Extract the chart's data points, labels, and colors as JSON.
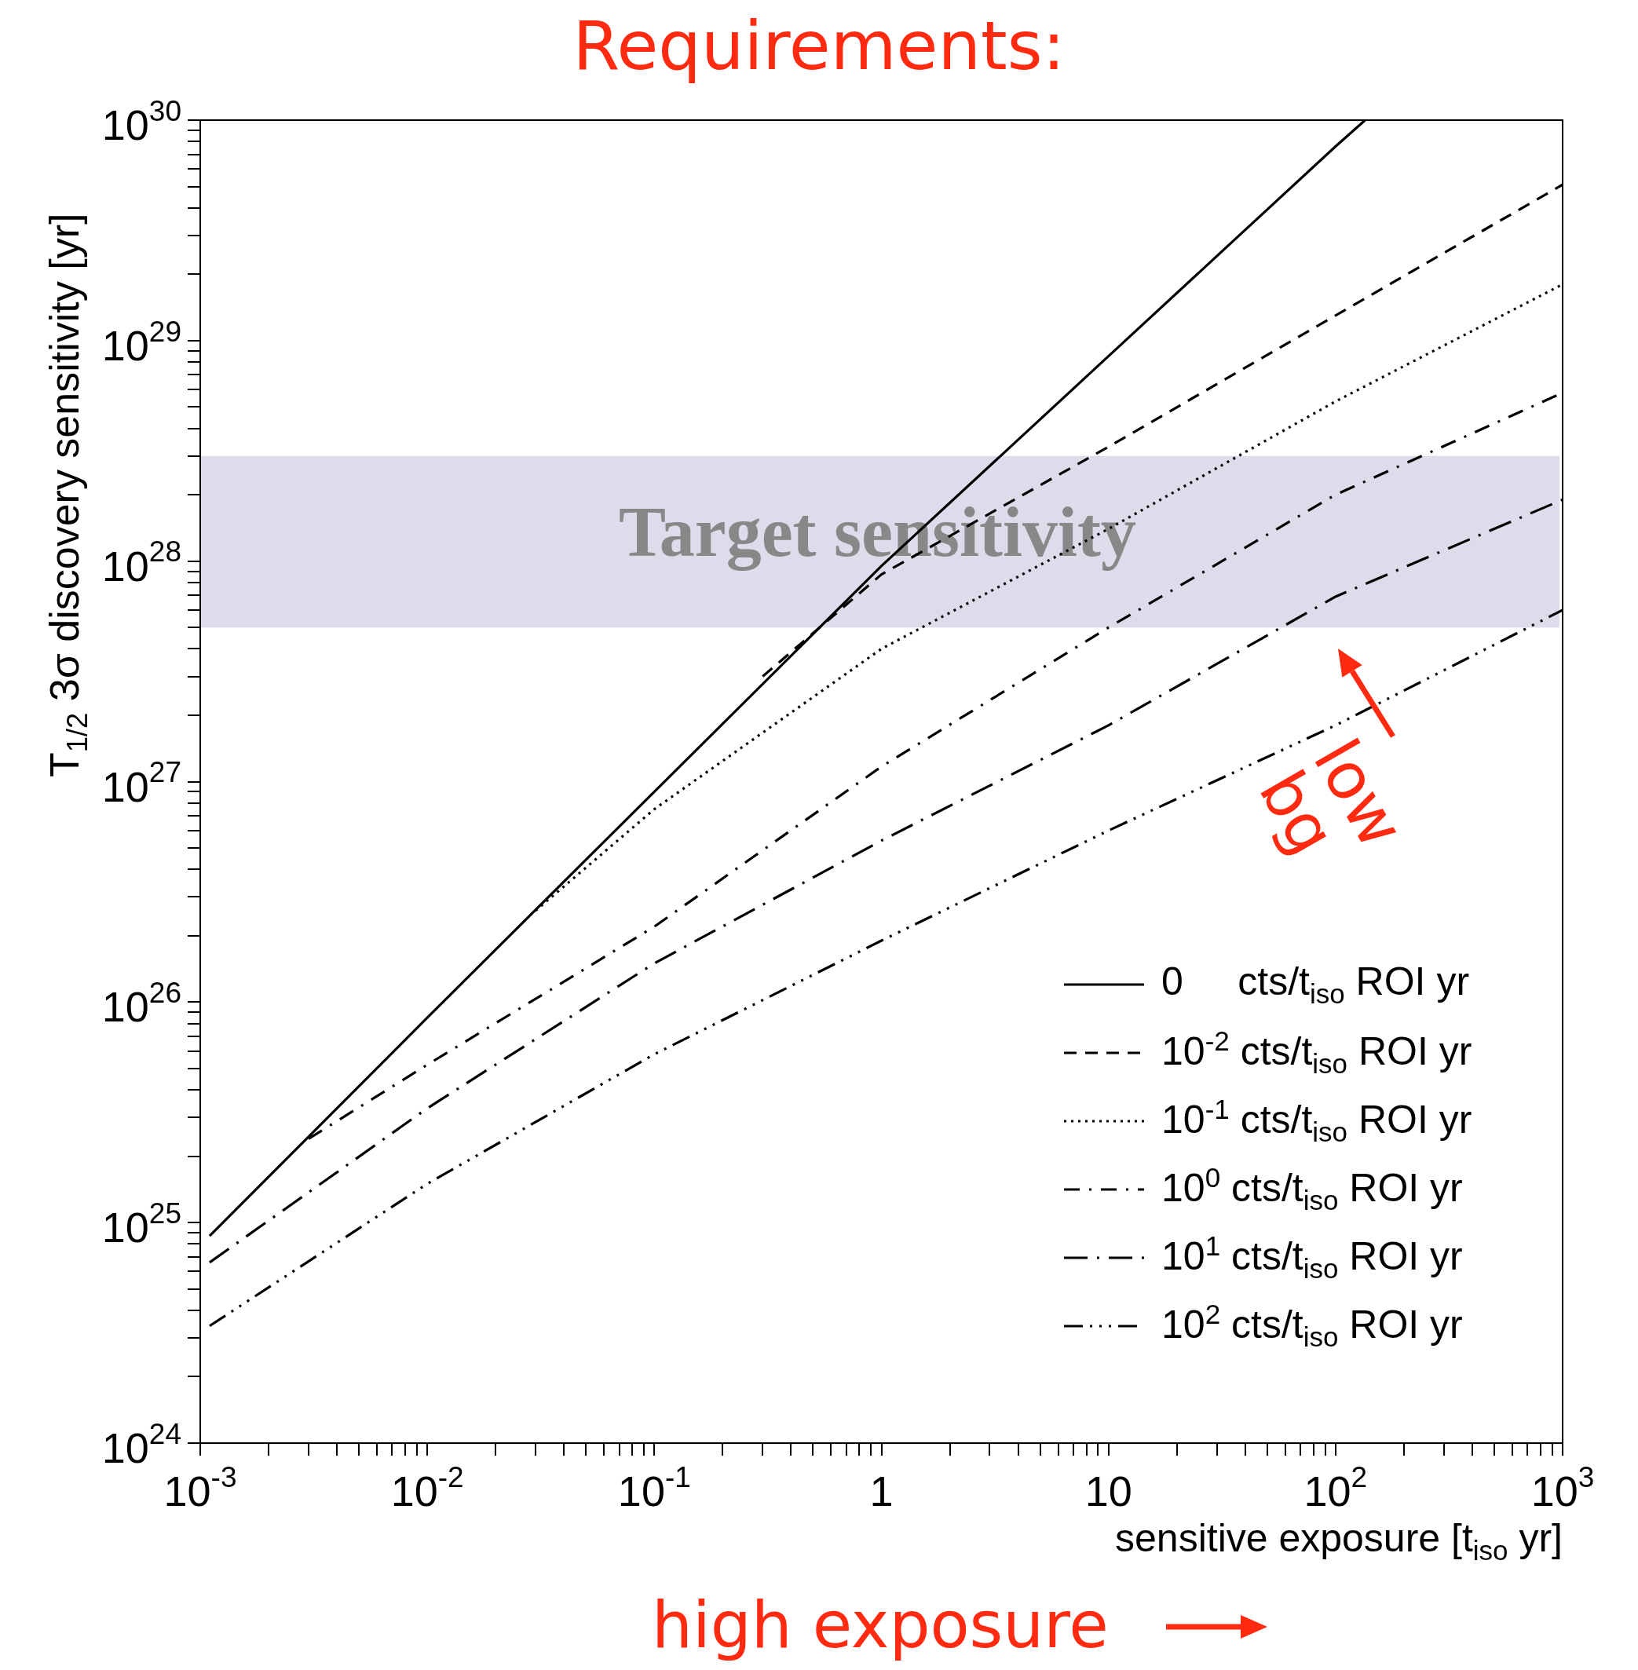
{
  "chart_data": {
    "type": "line",
    "title": "Requirements:",
    "xlabel": "sensitive exposure [t$_{iso}$ yr]",
    "ylabel": "T$_{1/2}$ 3σ discovery sensitivity [yr]",
    "log": "xy",
    "grid": false,
    "legend": "bottom right",
    "marker": "none",
    "xlim": [
      0.001,
      1000
    ],
    "ylim": [
      1e+24,
      1e+30
    ],
    "xticks": [
      {
        "value": 0.001,
        "label": "10$^{-3}$"
      },
      {
        "value": 0.002,
        "label": null
      },
      {
        "value": 0.003,
        "label": null
      },
      {
        "value": 0.004,
        "label": null
      },
      {
        "value": 0.005,
        "label": null
      },
      {
        "value": 0.006,
        "label": null
      },
      {
        "value": 0.007,
        "label": null
      },
      {
        "value": 0.008,
        "label": null
      },
      {
        "value": 0.009,
        "label": null
      },
      {
        "value": 0.01,
        "label": "10$^{-2}$"
      },
      {
        "value": 0.02,
        "label": null
      },
      {
        "value": 0.03,
        "label": null
      },
      {
        "value": 0.04,
        "label": null
      },
      {
        "value": 0.05,
        "label": null
      },
      {
        "value": 0.06,
        "label": null
      },
      {
        "value": 0.07,
        "label": null
      },
      {
        "value": 0.08,
        "label": null
      },
      {
        "value": 0.09,
        "label": null
      },
      {
        "value": 0.1,
        "label": "10$^{-1}$"
      },
      {
        "value": 0.2,
        "label": null
      },
      {
        "value": 0.3,
        "label": null
      },
      {
        "value": 0.4,
        "label": null
      },
      {
        "value": 0.5,
        "label": null
      },
      {
        "value": 0.6,
        "label": null
      },
      {
        "value": 0.7,
        "label": null
      },
      {
        "value": 0.8,
        "label": null
      },
      {
        "value": 0.9,
        "label": null
      },
      1,
      {
        "value": 2,
        "label": null
      },
      {
        "value": 3,
        "label": null
      },
      {
        "value": 4,
        "label": null
      },
      {
        "value": 5,
        "label": null
      },
      {
        "value": 6,
        "label": null
      },
      {
        "value": 7,
        "label": null
      },
      {
        "value": 8,
        "label": null
      },
      {
        "value": 9,
        "label": null
      },
      10,
      {
        "value": 20,
        "label": null
      },
      {
        "value": 30,
        "label": null
      },
      {
        "value": 40,
        "label": null
      },
      {
        "value": 50,
        "label": null
      },
      {
        "value": 60,
        "label": null
      },
      {
        "value": 70,
        "label": null
      },
      {
        "value": 80,
        "label": null
      },
      {
        "value": 90,
        "label": null
      },
      {
        "value": 100,
        "label": "10$^{2}$"
      },
      {
        "value": 200,
        "label": null
      },
      {
        "value": 300,
        "label": null
      },
      {
        "value": 400,
        "label": null
      },
      {
        "value": 500,
        "label": null
      },
      {
        "value": 600,
        "label": null
      },
      {
        "value": 700,
        "label": null
      },
      {
        "value": 800,
        "label": null
      },
      {
        "value": 900,
        "label": null
      },
      {
        "value": 1000,
        "label": "10$^{3}$"
      }
    ],
    "yticks": [
      {
        "value": 1e+24,
        "label": "10$^{24}$"
      },
      {
        "value": 2e+24,
        "label": null
      },
      {
        "value": 3e+24,
        "label": null
      },
      {
        "value": 4e+24,
        "label": null
      },
      {
        "value": 5e+24,
        "label": null
      },
      {
        "value": 6e+24,
        "label": null
      },
      {
        "value": 7e+24,
        "label": null
      },
      {
        "value": 8e+24,
        "label": null
      },
      {
        "value": 9e+24,
        "label": null
      },
      {
        "value": 1e+25,
        "label": "10$^{25}$"
      },
      {
        "value": 2e+25,
        "label": null
      },
      {
        "value": 3e+25,
        "label": null
      },
      {
        "value": 4e+25,
        "label": null
      },
      {
        "value": 5e+25,
        "label": null
      },
      {
        "value": 6e+25,
        "label": null
      },
      {
        "value": 7e+25,
        "label": null
      },
      {
        "value": 8e+25,
        "label": null
      },
      {
        "value": 9e+25,
        "label": null
      },
      {
        "value": 1e+26,
        "label": "10$^{26}$"
      },
      {
        "value": 2e+26,
        "label": null
      },
      {
        "value": 3e+26,
        "label": null
      },
      {
        "value": 4e+26,
        "label": null
      },
      {
        "value": 5e+26,
        "label": null
      },
      {
        "value": 6e+26,
        "label": null
      },
      {
        "value": 7e+26,
        "label": null
      },
      {
        "value": 8e+26,
        "label": null
      },
      {
        "value": 9e+26,
        "label": null
      },
      {
        "value": 1e+27,
        "label": "10$^{27}$"
      },
      {
        "value": 2e+27,
        "label": null
      },
      {
        "value": 3e+27,
        "label": null
      },
      {
        "value": 4e+27,
        "label": null
      },
      {
        "value": 5e+27,
        "label": null
      },
      {
        "value": 6e+27,
        "label": null
      },
      {
        "value": 7e+27,
        "label": null
      },
      {
        "value": 8e+27,
        "label": null
      },
      {
        "value": 9e+27,
        "label": null
      },
      {
        "value": 1e+28,
        "label": "10$^{28}$"
      },
      {
        "value": 2e+28,
        "label": null
      },
      {
        "value": 3e+28,
        "label": null
      },
      {
        "value": 4e+28,
        "label": null
      },
      {
        "value": 5e+28,
        "label": null
      },
      {
        "value": 6e+28,
        "label": null
      },
      {
        "value": 7e+28,
        "label": null
      },
      {
        "value": 8e+28,
        "label": null
      },
      {
        "value": 9e+28,
        "label": null
      },
      {
        "value": 1e+29,
        "label": "10$^{29}$"
      },
      {
        "value": 2e+29,
        "label": null
      },
      {
        "value": 3e+29,
        "label": null
      },
      {
        "value": 4e+29,
        "label": null
      },
      {
        "value": 5e+29,
        "label": null
      },
      {
        "value": 6e+29,
        "label": null
      },
      {
        "value": 7e+29,
        "label": null
      },
      {
        "value": 8e+29,
        "label": null
      },
      {
        "value": 9e+29,
        "label": null
      },
      {
        "value": 1e+30,
        "label": "10$^{30}$"
      }
    ],
    "bands": [
      {
        "axis": "y",
        "from": 5e+27,
        "to": 3e+28,
        "label": "Target sensitivity",
        "color": "#dcdcea"
      }
    ],
    "annotations": [
      "high exposure",
      "low bg"
    ],
    "series": [
      {
        "name": "0     cts/t$_{iso}$ ROI yr",
        "color": "#000000",
        "line_style": "solid",
        "x": [
          0.0011,
          0.01,
          0.1,
          1,
          10,
          100,
          135
        ],
        "values": [
          8.7e+24,
          8.5e+25,
          9e+26,
          9.5e+27,
          8.5e+28,
          7.6e+29,
          1e+30
        ]
      },
      {
        "name": "10$^{-2}$ cts/t$_{iso}$ ROI yr",
        "color": "#000000",
        "line_style": "dashed",
        "x": [
          0.3,
          1,
          10,
          100,
          1000
        ],
        "values": [
          3e+27,
          8.7e+27,
          3.3e+28,
          1.3e+29,
          5.1e+29
        ]
      },
      {
        "name": "10$^{-1}$ cts/t$_{iso}$ ROI yr",
        "color": "#000000",
        "line_style": "dotted",
        "x": [
          0.03,
          0.1,
          1,
          10,
          100,
          1000
        ],
        "values": [
          2.6e+26,
          7.5e+26,
          4e+27,
          1.4e+28,
          5.3e+28,
          1.8e+29
        ]
      },
      {
        "name": "10$^{0}$ cts/t$_{iso}$ ROI yr",
        "color": "#000000",
        "line_style": "dashdot",
        "x": [
          0.003,
          0.01,
          0.1,
          1,
          10,
          100,
          1000
        ],
        "values": [
          2.4e+25,
          5.2e+25,
          2.2e+26,
          1.17e+27,
          5e+27,
          2e+28,
          5.8e+28
        ]
      },
      {
        "name": "10$^{1}$ cts/t$_{iso}$ ROI yr",
        "color": "#000000",
        "line_style": "longdashdot",
        "x": [
          0.0011,
          0.01,
          0.1,
          1,
          10,
          100,
          1000
        ],
        "values": [
          6.6e+24,
          3.3e+25,
          1.5e+26,
          5.4e+26,
          1.8e+27,
          6.9e+27,
          1.9e+28
        ]
      },
      {
        "name": "10$^{2}$ cts/t$_{iso}$ ROI yr",
        "color": "#000000",
        "line_style": "dashdotdotdot",
        "x": [
          0.0011,
          0.01,
          0.1,
          1,
          10,
          100,
          1000
        ],
        "values": [
          3.4e+24,
          1.5e+25,
          5.8e+25,
          1.9e+26,
          6e+26,
          1.8e+27,
          6e+27
        ]
      }
    ]
  }
}
